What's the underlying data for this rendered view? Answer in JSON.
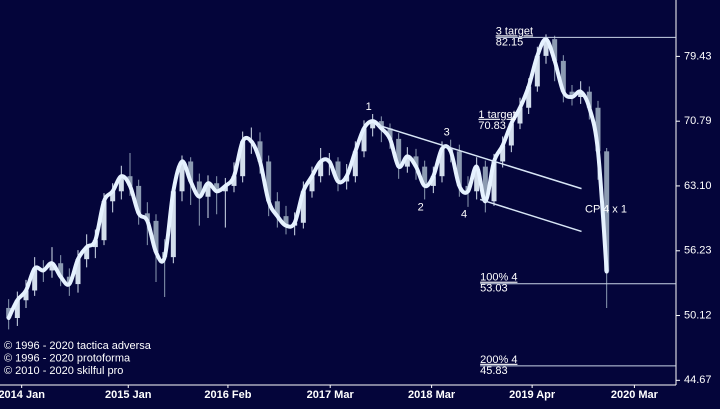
{
  "chart_data": {
    "type": "candlestick",
    "log_scale": true,
    "colors": {
      "up": "#d3deec",
      "down": "#8c9bb2",
      "smooth": "#e6f2ff",
      "text": "#ffffff"
    },
    "x": [
      0,
      1,
      2,
      3,
      4,
      5,
      6,
      7,
      8,
      9,
      10,
      11,
      12,
      13,
      14,
      15,
      16,
      17,
      18,
      19,
      20,
      21,
      22,
      23,
      24,
      25,
      26,
      27,
      28,
      29,
      30,
      31,
      32,
      33,
      34,
      35,
      36,
      37,
      38,
      39,
      40,
      41,
      42,
      43,
      44,
      45,
      46,
      47,
      48,
      49,
      50,
      51,
      52,
      53,
      54,
      55,
      56,
      57,
      58,
      59,
      60,
      61,
      62,
      63,
      64,
      65,
      66,
      67,
      68,
      69
    ],
    "open": [
      50.8,
      49.9,
      51.5,
      52.4,
      54.5,
      54.3,
      55.0,
      53.7,
      53.0,
      55.4,
      56.6,
      57.3,
      61.4,
      62.5,
      64.2,
      63.1,
      60.1,
      59.3,
      56.1,
      55.6,
      62.5,
      65.9,
      63.6,
      61.9,
      63.4,
      62.5,
      63.1,
      64.2,
      68.3,
      68.3,
      65.9,
      61.4,
      59.8,
      58.8,
      59.1,
      62.5,
      64.2,
      65.9,
      65.9,
      63.6,
      64.2,
      67.1,
      69.9,
      70.8,
      69.9,
      68.6,
      65.3,
      66.5,
      65.3,
      63.1,
      64.2,
      67.4,
      67.1,
      63.1,
      62.5,
      65.3,
      61.4,
      65.9,
      67.8,
      70.5,
      72.5,
      75.3,
      79.5,
      81.9,
      78.8,
      74.6,
      73.9,
      74.6,
      72.5,
      67.1
    ],
    "high": [
      51.6,
      52.3,
      53.4,
      55.6,
      55.3,
      56.6,
      55.8,
      54.5,
      56.3,
      57.9,
      58.4,
      62.3,
      63.4,
      65.4,
      66.9,
      63.8,
      61.3,
      60.0,
      57.4,
      63.1,
      66.6,
      66.4,
      64.5,
      64.3,
      64.2,
      64.0,
      65.8,
      69.5,
      70.0,
      69.4,
      66.6,
      62.4,
      60.9,
      60.2,
      63.6,
      65.3,
      67.5,
      66.9,
      66.4,
      65.6,
      68.3,
      70.9,
      71.7,
      71.4,
      70.5,
      69.3,
      67.6,
      67.4,
      66.0,
      65.3,
      68.3,
      68.5,
      67.9,
      64.2,
      66.4,
      66.0,
      66.8,
      68.9,
      71.6,
      73.8,
      76.4,
      80.8,
      82.6,
      82.4,
      79.6,
      75.5,
      76.0,
      75.3,
      73.4,
      67.5
    ],
    "low": [
      48.9,
      49.2,
      50.8,
      51.9,
      53.2,
      53.6,
      52.8,
      51.9,
      52.2,
      54.6,
      55.5,
      56.8,
      60.2,
      61.6,
      62.0,
      58.9,
      56.8,
      53.2,
      51.8,
      55.0,
      61.4,
      61.0,
      58.8,
      59.6,
      60.0,
      58.6,
      62.4,
      63.5,
      66.8,
      64.5,
      59.8,
      58.6,
      57.9,
      57.8,
      58.5,
      61.8,
      63.5,
      64.3,
      62.5,
      62.7,
      63.5,
      66.4,
      68.9,
      68.2,
      67.4,
      63.9,
      64.6,
      63.8,
      61.6,
      62.3,
      63.5,
      65.8,
      61.9,
      60.8,
      61.6,
      60.2,
      60.9,
      65.2,
      67.0,
      69.8,
      71.7,
      74.6,
      78.4,
      76.0,
      73.2,
      72.8,
      73.0,
      71.0,
      63.8,
      50.8
    ],
    "close": [
      49.9,
      51.5,
      52.4,
      54.5,
      54.3,
      55.0,
      53.7,
      53.0,
      55.4,
      56.6,
      57.3,
      61.4,
      62.5,
      64.2,
      63.1,
      60.1,
      59.3,
      56.1,
      55.6,
      62.5,
      65.9,
      63.6,
      61.9,
      63.4,
      62.5,
      63.1,
      64.2,
      68.3,
      68.3,
      65.9,
      61.4,
      59.8,
      58.8,
      59.1,
      62.5,
      64.2,
      65.9,
      65.9,
      63.6,
      64.2,
      67.1,
      69.9,
      70.8,
      69.9,
      68.6,
      65.3,
      66.5,
      65.3,
      63.1,
      64.2,
      67.4,
      67.1,
      63.1,
      62.5,
      65.3,
      61.4,
      65.9,
      67.8,
      70.5,
      72.5,
      75.3,
      79.5,
      81.9,
      78.8,
      74.6,
      73.9,
      74.6,
      72.5,
      67.1,
      54.2
    ],
    "xlim": [
      -1,
      77
    ],
    "xticks": [
      {
        "value": 1.5,
        "label": "2014 Jan"
      },
      {
        "value": 13.8,
        "label": "2015 Jan"
      },
      {
        "value": 25.3,
        "label": "2016 Feb"
      },
      {
        "value": 37.1,
        "label": "2017 Mar"
      },
      {
        "value": 48.8,
        "label": "2018 Mar"
      },
      {
        "value": 60.4,
        "label": "2019 Apr"
      },
      {
        "value": 72.2,
        "label": "2020 Mar"
      }
    ],
    "ylim": [
      44.3,
      87.8
    ],
    "yticks": [
      44.67,
      50.12,
      56.23,
      {
        "value": 63.1,
        "label": "63.10"
      },
      70.79,
      79.43
    ],
    "waves": [
      {
        "text": "1",
        "x": 42,
        "at": "high"
      },
      {
        "text": "2",
        "x": 48,
        "at": "low"
      },
      {
        "text": "3",
        "x": 51,
        "at": "high"
      },
      {
        "text": "4",
        "x": 53,
        "at": "low"
      }
    ],
    "trendlines": [
      {
        "x": [
          42.6,
          66.1
        ],
        "y": [
          70.3,
          62.8
        ]
      },
      {
        "x": [
          54.4,
          66.1
        ],
        "y": [
          61.6,
          58.2
        ]
      }
    ],
    "channel_label": {
      "text": "CP 4 x 1",
      "x": 66.5,
      "y": 60.5
    },
    "levels": [
      {
        "label": "3 target",
        "value": 82.15,
        "x": 56.2,
        "line": true
      },
      {
        "label": "1 target",
        "value": 70.83,
        "x": 54.2,
        "line": false
      },
      {
        "label": "100% 4",
        "value": 53.03,
        "x": 54.4,
        "line": true
      },
      {
        "label": "200% 4",
        "value": 45.83,
        "x": 54.4,
        "line": true
      }
    ],
    "copyright": [
      "© 1996 - 2020 tactica adversa",
      "© 1996 - 2020 protoforma",
      "© 2010 - 2020 skilful pro"
    ]
  }
}
